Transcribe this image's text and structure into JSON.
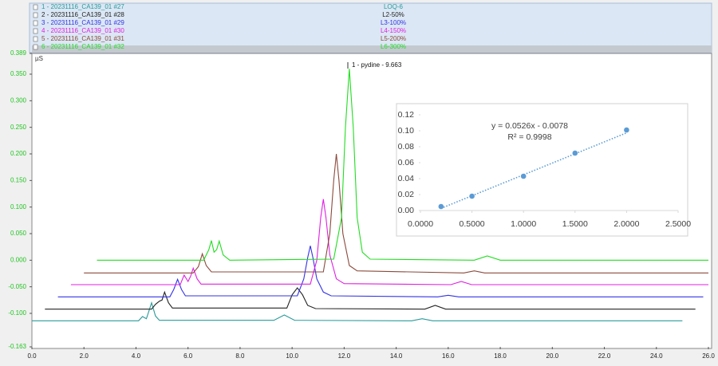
{
  "chart_data": [
    {
      "type": "line",
      "y_unit": "µS",
      "annotation": "1 - pydine - 9.663",
      "xlim": [
        0,
        26.0
      ],
      "ylim": [
        -0.163,
        0.389
      ],
      "xticks": [
        {
          "value": 0,
          "label": "0.0"
        },
        {
          "value": 2,
          "label": "2.0"
        },
        {
          "value": 4,
          "label": "4.0"
        },
        {
          "value": 6,
          "label": "6.0"
        },
        {
          "value": 8,
          "label": "8.0"
        },
        {
          "value": 10,
          "label": "10.0"
        },
        {
          "value": 12,
          "label": "12.0"
        },
        {
          "value": 14,
          "label": "14.0"
        },
        {
          "value": 16,
          "label": "16.0"
        },
        {
          "value": 18,
          "label": "18.0"
        },
        {
          "value": 20,
          "label": "20.0"
        },
        {
          "value": 22,
          "label": "22.0"
        },
        {
          "value": 24,
          "label": "24.0"
        },
        {
          "value": 26,
          "label": "26.0"
        }
      ],
      "yticks": [
        {
          "value": -0.163,
          "label": "-0.163"
        },
        {
          "value": -0.1,
          "label": "-0.100"
        },
        {
          "value": -0.05,
          "label": "-0.050"
        },
        {
          "value": 0,
          "label": "0.000"
        },
        {
          "value": 0.05,
          "label": "0.050"
        },
        {
          "value": 0.1,
          "label": "0.100"
        },
        {
          "value": 0.15,
          "label": "0.150"
        },
        {
          "value": 0.2,
          "label": "0.200"
        },
        {
          "value": 0.25,
          "label": "0.250"
        },
        {
          "value": 0.3,
          "label": "0.300"
        },
        {
          "value": 0.35,
          "label": "0.350"
        },
        {
          "value": 0.389,
          "label": "0.389"
        }
      ],
      "series": [
        {
          "name": "1 - 20231116_CA139_01 #27",
          "label": "LOQ-6",
          "color": "#2a9a9a",
          "x": [
            0.0,
            4.1,
            4.25,
            4.4,
            4.5,
            4.6,
            4.75,
            4.9,
            9.3,
            9.7,
            10.1,
            14.6,
            15.0,
            15.4,
            25.0
          ],
          "values": [
            -0.114,
            -0.114,
            -0.106,
            -0.11,
            -0.095,
            -0.08,
            -0.105,
            -0.113,
            -0.113,
            -0.103,
            -0.113,
            -0.114,
            -0.11,
            -0.114,
            -0.114
          ]
        },
        {
          "name": "2 - 20231116_CA139_01 #28",
          "label": "L2-50%",
          "color": "#222222",
          "x": [
            0.5,
            4.6,
            4.75,
            4.9,
            5.0,
            5.1,
            5.25,
            5.4,
            9.8,
            10.0,
            10.2,
            10.4,
            10.6,
            10.9,
            15.1,
            15.5,
            15.9,
            25.5
          ],
          "values": [
            -0.092,
            -0.092,
            -0.083,
            -0.077,
            -0.075,
            -0.06,
            -0.08,
            -0.09,
            -0.09,
            -0.065,
            -0.052,
            -0.065,
            -0.085,
            -0.091,
            -0.092,
            -0.085,
            -0.092,
            -0.092
          ]
        },
        {
          "name": "3 - 20231116_CA139_01 #29",
          "label": "L3-100%",
          "color": "#3333e6",
          "x": [
            1.0,
            5.3,
            5.45,
            5.6,
            5.75,
            5.9,
            10.2,
            10.45,
            10.6,
            10.7,
            10.8,
            10.95,
            11.2,
            11.5,
            15.6,
            16.0,
            16.4,
            25.8
          ],
          "values": [
            -0.069,
            -0.069,
            -0.055,
            -0.036,
            -0.055,
            -0.067,
            -0.067,
            -0.035,
            0.005,
            0.027,
            0.005,
            -0.035,
            -0.06,
            -0.067,
            -0.069,
            -0.066,
            -0.069,
            -0.069
          ]
        },
        {
          "name": "4 - 20231116_CA139_01 #30",
          "label": "L4-150%",
          "color": "#e020e0",
          "x": [
            1.5,
            5.7,
            5.85,
            6.0,
            6.1,
            6.2,
            6.35,
            6.5,
            10.7,
            10.95,
            11.1,
            11.2,
            11.3,
            11.45,
            11.7,
            12.0,
            16.1,
            16.5,
            16.9,
            26.0
          ],
          "values": [
            -0.046,
            -0.046,
            -0.028,
            -0.04,
            -0.03,
            -0.015,
            -0.035,
            -0.045,
            -0.045,
            0.0,
            0.08,
            0.115,
            0.08,
            0.01,
            -0.035,
            -0.044,
            -0.046,
            -0.04,
            -0.046,
            -0.046
          ]
        },
        {
          "name": "5 - 20231116_CA139_01 #31",
          "label": "L5-200%",
          "color": "#8b4a3c",
          "x": [
            2.0,
            6.2,
            6.4,
            6.55,
            6.7,
            6.9,
            11.2,
            11.45,
            11.6,
            11.7,
            11.8,
            11.95,
            12.2,
            12.5,
            16.6,
            17.0,
            17.4,
            26.0
          ],
          "values": [
            -0.024,
            -0.024,
            -0.012,
            0.012,
            -0.01,
            -0.022,
            -0.022,
            0.05,
            0.15,
            0.2,
            0.15,
            0.05,
            -0.01,
            -0.02,
            -0.024,
            -0.02,
            -0.024,
            -0.024
          ]
        },
        {
          "name": "6 - 20231116_CA139_01 #32",
          "label": "L6-300%",
          "color": "#22dd22",
          "x": [
            2.5,
            6.6,
            6.8,
            6.9,
            7.0,
            7.1,
            7.2,
            7.35,
            7.6,
            11.6,
            11.9,
            12.05,
            12.2,
            12.35,
            12.5,
            12.7,
            13.0,
            17.0,
            17.5,
            18.0,
            26.0
          ],
          "values": [
            0,
            0,
            0.02,
            0.037,
            0.015,
            0.02,
            0.036,
            0.01,
            0,
            0.002,
            0.08,
            0.25,
            0.36,
            0.25,
            0.08,
            0.015,
            0.002,
            0,
            0.008,
            0,
            0
          ]
        }
      ]
    },
    {
      "type": "scatter",
      "xlim": [
        0,
        2.5
      ],
      "ylim": [
        0,
        0.12
      ],
      "xticks": [
        {
          "value": 0,
          "label": "0.0000"
        },
        {
          "value": 0.5,
          "label": "0.5000"
        },
        {
          "value": 1,
          "label": "1.0000"
        },
        {
          "value": 1.5,
          "label": "1.5000"
        },
        {
          "value": 2,
          "label": "2.0000"
        },
        {
          "value": 2.5,
          "label": "2.5000"
        }
      ],
      "yticks": [
        {
          "value": 0,
          "label": "0.00"
        },
        0.02,
        0.04,
        0.06,
        0.08,
        {
          "value": 0.1,
          "label": "0.10"
        },
        0.12
      ],
      "series": [
        {
          "color": "#5b9bd5",
          "x": [
            0.2,
            0.5,
            1.0,
            1.5,
            2.0
          ],
          "values": [
            0.005,
            0.018,
            0.043,
            0.072,
            0.101
          ]
        }
      ],
      "trendline": {
        "equation": "y = 0.0526x - 0.0078",
        "r_squared": "R² = 0.9998",
        "slope": 0.0526,
        "intercept": -0.0078
      }
    }
  ]
}
